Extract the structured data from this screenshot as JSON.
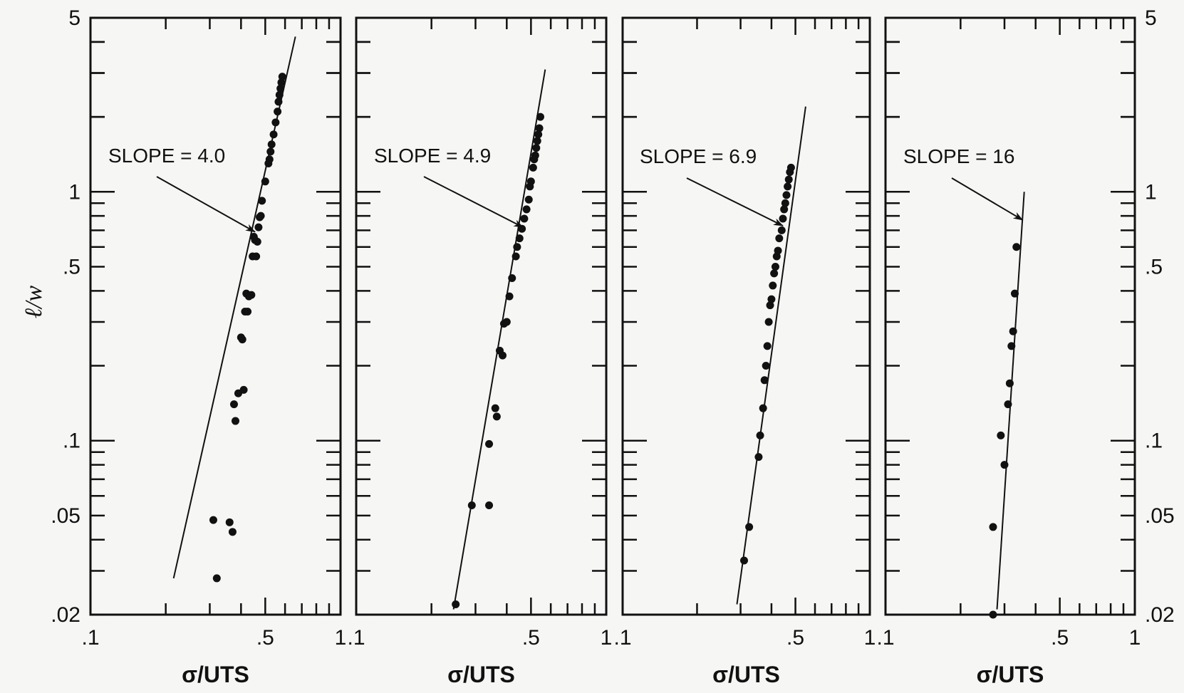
{
  "chart_data": [
    {
      "type": "scatter",
      "ylabel": "ℓ/w",
      "xlabel": "σ/UTS",
      "xscale": "log",
      "yscale": "log",
      "xlim": [
        0.1,
        1
      ],
      "ylim": [
        0.02,
        5
      ],
      "xticks": [
        0.1,
        0.5,
        1
      ],
      "xtick_labels": [
        ".1",
        ".5",
        "1"
      ],
      "yticks": [
        0.02,
        0.05,
        0.1,
        0.5,
        1,
        5
      ],
      "ytick_labels": [
        ".02",
        ".05",
        ".1",
        ".5",
        "1",
        "5"
      ],
      "annotation": "SLOPE = 4.0",
      "annotation_arrow_to": [
        0.455,
        0.69
      ],
      "fit_line": [
        [
          0.215,
          0.028
        ],
        [
          0.66,
          4.2
        ]
      ],
      "points": [
        [
          0.31,
          0.048
        ],
        [
          0.32,
          0.028
        ],
        [
          0.36,
          0.047
        ],
        [
          0.37,
          0.043
        ],
        [
          0.375,
          0.14
        ],
        [
          0.38,
          0.12
        ],
        [
          0.39,
          0.155
        ],
        [
          0.4,
          0.26
        ],
        [
          0.405,
          0.255
        ],
        [
          0.41,
          0.16
        ],
        [
          0.415,
          0.33
        ],
        [
          0.42,
          0.39
        ],
        [
          0.425,
          0.33
        ],
        [
          0.43,
          0.38
        ],
        [
          0.44,
          0.385
        ],
        [
          0.445,
          0.55
        ],
        [
          0.45,
          0.66
        ],
        [
          0.455,
          0.64
        ],
        [
          0.46,
          0.55
        ],
        [
          0.465,
          0.63
        ],
        [
          0.47,
          0.72
        ],
        [
          0.475,
          0.79
        ],
        [
          0.48,
          0.8
        ],
        [
          0.485,
          0.92
        ],
        [
          0.5,
          1.1
        ],
        [
          0.515,
          1.3
        ],
        [
          0.52,
          1.35
        ],
        [
          0.525,
          1.45
        ],
        [
          0.53,
          1.55
        ],
        [
          0.54,
          1.7
        ],
        [
          0.55,
          1.9
        ],
        [
          0.56,
          2.1
        ],
        [
          0.565,
          2.3
        ],
        [
          0.57,
          2.45
        ],
        [
          0.575,
          2.6
        ],
        [
          0.58,
          2.75
        ],
        [
          0.585,
          2.9
        ]
      ]
    },
    {
      "type": "scatter",
      "xlabel": "σ/UTS",
      "xscale": "log",
      "yscale": "log",
      "xlim": [
        0.1,
        1
      ],
      "ylim": [
        0.02,
        5
      ],
      "xticks": [
        0.1,
        0.5,
        1
      ],
      "xtick_labels": [
        ".1",
        ".5",
        "1"
      ],
      "annotation": "SLOPE = 4.9",
      "annotation_arrow_to": [
        0.465,
        0.72
      ],
      "fit_line": [
        [
          0.245,
          0.021
        ],
        [
          0.57,
          3.1
        ]
      ],
      "points": [
        [
          0.25,
          0.022
        ],
        [
          0.29,
          0.055
        ],
        [
          0.34,
          0.097
        ],
        [
          0.34,
          0.055
        ],
        [
          0.36,
          0.135
        ],
        [
          0.365,
          0.125
        ],
        [
          0.375,
          0.23
        ],
        [
          0.385,
          0.22
        ],
        [
          0.39,
          0.295
        ],
        [
          0.4,
          0.3
        ],
        [
          0.41,
          0.38
        ],
        [
          0.42,
          0.45
        ],
        [
          0.435,
          0.55
        ],
        [
          0.44,
          0.6
        ],
        [
          0.45,
          0.65
        ],
        [
          0.46,
          0.71
        ],
        [
          0.47,
          0.78
        ],
        [
          0.48,
          0.85
        ],
        [
          0.49,
          0.93
        ],
        [
          0.495,
          1.05
        ],
        [
          0.5,
          1.1
        ],
        [
          0.51,
          1.25
        ],
        [
          0.515,
          1.35
        ],
        [
          0.52,
          1.4
        ],
        [
          0.525,
          1.5
        ],
        [
          0.53,
          1.6
        ],
        [
          0.535,
          1.7
        ],
        [
          0.54,
          1.8
        ],
        [
          0.545,
          2.0
        ]
      ]
    },
    {
      "type": "scatter",
      "xlabel": "σ/UTS",
      "xscale": "log",
      "yscale": "log",
      "xlim": [
        0.1,
        1
      ],
      "ylim": [
        0.02,
        5
      ],
      "xticks": [
        0.1,
        0.5,
        1
      ],
      "xtick_labels": [
        ".1",
        ".5",
        "1"
      ],
      "annotation": "SLOPE = 6.9",
      "annotation_arrow_to": [
        0.445,
        0.73
      ],
      "fit_line": [
        [
          0.29,
          0.022
        ],
        [
          0.55,
          2.2
        ]
      ],
      "points": [
        [
          0.31,
          0.033
        ],
        [
          0.325,
          0.045
        ],
        [
          0.355,
          0.086
        ],
        [
          0.36,
          0.105
        ],
        [
          0.37,
          0.135
        ],
        [
          0.375,
          0.175
        ],
        [
          0.38,
          0.2
        ],
        [
          0.385,
          0.24
        ],
        [
          0.39,
          0.3
        ],
        [
          0.395,
          0.35
        ],
        [
          0.4,
          0.37
        ],
        [
          0.405,
          0.42
        ],
        [
          0.41,
          0.47
        ],
        [
          0.415,
          0.5
        ],
        [
          0.42,
          0.55
        ],
        [
          0.425,
          0.58
        ],
        [
          0.43,
          0.65
        ],
        [
          0.44,
          0.7
        ],
        [
          0.445,
          0.78
        ],
        [
          0.45,
          0.85
        ],
        [
          0.455,
          0.9
        ],
        [
          0.46,
          0.97
        ],
        [
          0.465,
          1.05
        ],
        [
          0.47,
          1.12
        ],
        [
          0.475,
          1.2
        ],
        [
          0.48,
          1.25
        ]
      ]
    },
    {
      "type": "scatter",
      "xlabel": "σ/UTS",
      "xscale": "log",
      "yscale": "log",
      "xlim": [
        0.1,
        1
      ],
      "ylim": [
        0.02,
        5
      ],
      "xticks": [
        0.1,
        0.5,
        1
      ],
      "xtick_labels": [
        ".1",
        ".5",
        "1"
      ],
      "yticks_right": [
        0.02,
        0.05,
        0.1,
        0.5,
        1,
        5
      ],
      "ytick_labels_right": [
        ".02",
        ".05",
        ".1",
        ".5",
        "1",
        "5"
      ],
      "annotation": "SLOPE = 16",
      "annotation_arrow_to": [
        0.355,
        0.77
      ],
      "fit_line": [
        [
          0.28,
          0.021
        ],
        [
          0.36,
          1.0
        ]
      ],
      "points": [
        [
          0.27,
          0.02
        ],
        [
          0.27,
          0.045
        ],
        [
          0.29,
          0.105
        ],
        [
          0.3,
          0.08
        ],
        [
          0.31,
          0.14
        ],
        [
          0.315,
          0.17
        ],
        [
          0.32,
          0.24
        ],
        [
          0.325,
          0.275
        ],
        [
          0.33,
          0.39
        ],
        [
          0.335,
          0.6
        ]
      ]
    }
  ]
}
